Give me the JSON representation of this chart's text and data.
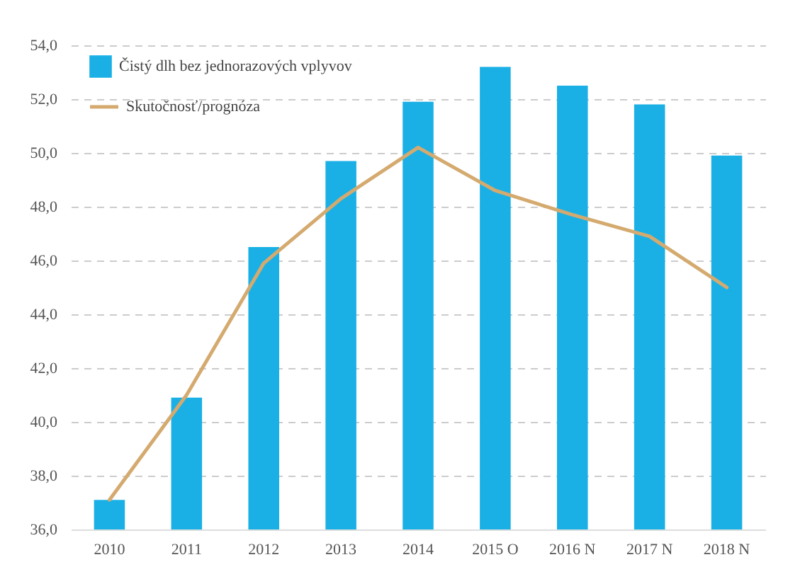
{
  "chart_data": {
    "type": "bar",
    "categories": [
      "2010",
      "2011",
      "2012",
      "2013",
      "2014",
      "2015 O",
      "2016 N",
      "2017 N",
      "2018 N"
    ],
    "series": [
      {
        "name": "Čistý dlh bez jednorazových vplyvov",
        "color": "#1bb0e5",
        "values": [
          37.1,
          40.9,
          46.5,
          49.7,
          51.9,
          53.2,
          52.5,
          51.8,
          49.9
        ]
      },
      {
        "name": "Skutočnosť/prognóza",
        "type": "line",
        "color": "#d4aa6f",
        "values": [
          37.1,
          41.0,
          45.9,
          48.3,
          50.2,
          48.6,
          47.7,
          46.9,
          45.0
        ]
      }
    ],
    "ylim": [
      36,
      54
    ],
    "yticks": [
      {
        "value": 36,
        "label": "36,0"
      },
      {
        "value": 38,
        "label": "38,0"
      },
      {
        "value": 40,
        "label": "40,0"
      },
      {
        "value": 42,
        "label": "42,0"
      },
      {
        "value": 44,
        "label": "44,0"
      },
      {
        "value": 46,
        "label": "46,0"
      },
      {
        "value": 48,
        "label": "48,0"
      },
      {
        "value": 50,
        "label": "50,0"
      },
      {
        "value": 52,
        "label": "52,0"
      },
      {
        "value": 54,
        "label": "54,0"
      }
    ],
    "grid": "y",
    "legend": "top left"
  }
}
